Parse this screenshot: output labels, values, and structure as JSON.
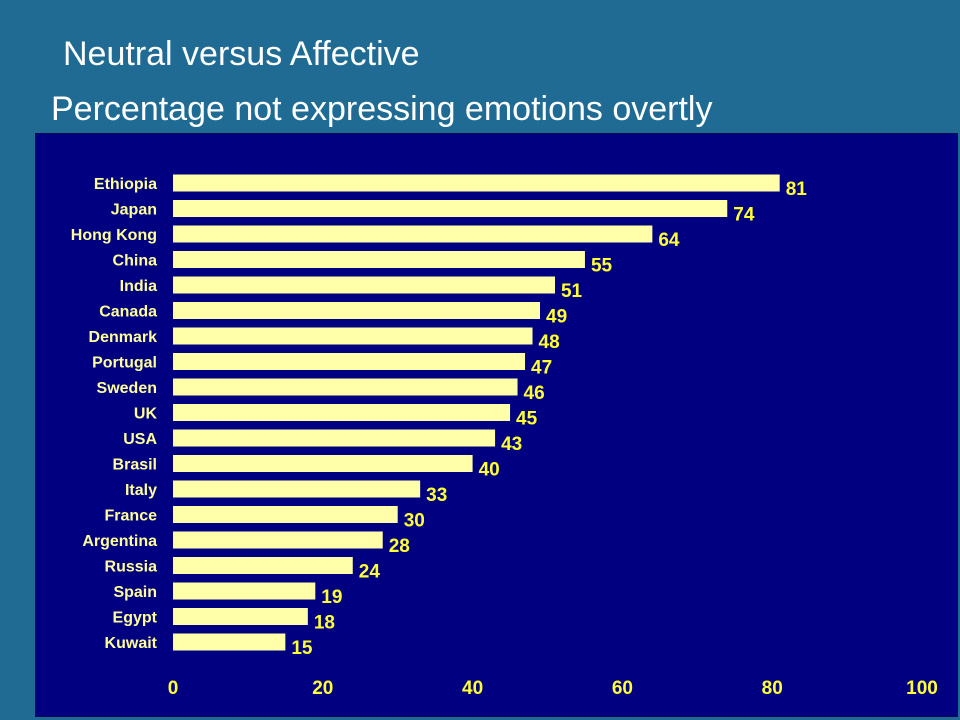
{
  "title": "Neutral versus Affective",
  "subtitle": "Percentage not expressing emotions overtly",
  "colors": {
    "background": "#1f6b94",
    "plot_background": "#000080",
    "bar": "#ffffaa",
    "category_text": "#ffff99",
    "value_text": "#ffff33",
    "tick_text": "#ffff33"
  },
  "chart_data": {
    "type": "bar",
    "orientation": "horizontal",
    "categories": [
      "Ethiopia",
      "Japan",
      "Hong Kong",
      "China",
      "India",
      "Canada",
      "Denmark",
      "Portugal",
      "Sweden",
      "UK",
      "USA",
      "Brasil",
      "Italy",
      "France",
      "Argentina",
      "Russia",
      "Spain",
      "Egypt",
      "Kuwait"
    ],
    "values": [
      81,
      74,
      64,
      55,
      51,
      49,
      48,
      47,
      46,
      45,
      43,
      40,
      33,
      30,
      28,
      24,
      19,
      18,
      15
    ],
    "value_labels": [
      "81",
      "74",
      "64",
      "55",
      "51",
      "49",
      "48",
      "47",
      "46",
      "45",
      "43",
      "40",
      "33",
      "30",
      "28",
      "24",
      "19",
      "18",
      "15"
    ],
    "xlim": [
      0,
      100
    ],
    "xticks": [
      0,
      20,
      40,
      60,
      80,
      100
    ],
    "xtick_labels": [
      "0",
      "20",
      "40",
      "60",
      "80",
      "100"
    ],
    "grid": false,
    "legend": "none"
  }
}
